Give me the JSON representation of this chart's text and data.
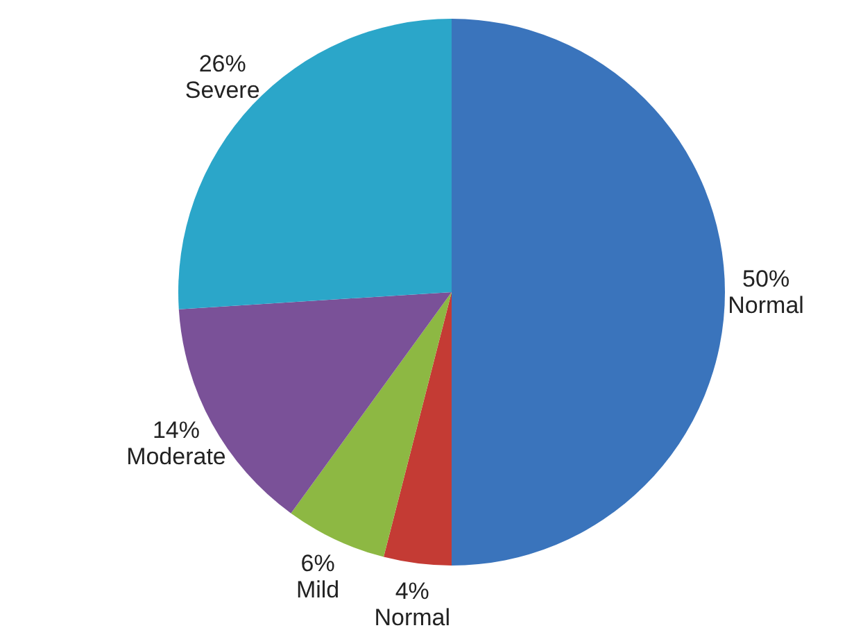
{
  "chart_data": {
    "type": "pie",
    "categories": [
      "Normal",
      "Normal",
      "Mild",
      "Moderate",
      "Severe"
    ],
    "values": [
      50,
      4,
      6,
      14,
      26
    ],
    "value_labels": [
      "50%",
      "4%",
      "6%",
      "14%",
      "26%"
    ],
    "colors": [
      "#3a74bc",
      "#c43b34",
      "#8db843",
      "#7a5198",
      "#2ba6c9"
    ]
  }
}
